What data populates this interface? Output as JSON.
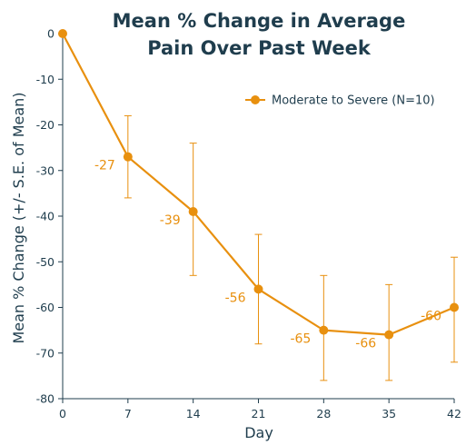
{
  "colors": {
    "series": "#e8900f",
    "text": "#1f3d4d",
    "axis": "#1f3d4d"
  },
  "chart_data": {
    "type": "line",
    "title_lines": [
      "Mean % Change in Average",
      "Pain Over Past Week"
    ],
    "xlabel": "Day",
    "ylabel": "Mean % Change (+/- S.E. of Mean)",
    "xlim": [
      0,
      42
    ],
    "ylim": [
      -80,
      0
    ],
    "x_ticks": [
      0,
      7,
      14,
      21,
      28,
      35,
      42
    ],
    "y_ticks": [
      0,
      -10,
      -20,
      -30,
      -40,
      -50,
      -60,
      -70,
      -80
    ],
    "grid": false,
    "legend": "top-right",
    "series": [
      {
        "name": "Moderate to Severe (N=10)",
        "points": [
          {
            "x": 0,
            "y": 0,
            "err_low": 0,
            "err_high": 0,
            "label": ""
          },
          {
            "x": 7,
            "y": -27,
            "err_low": -36,
            "err_high": -18,
            "label": "-27"
          },
          {
            "x": 14,
            "y": -39,
            "err_low": -53,
            "err_high": -24,
            "label": "-39"
          },
          {
            "x": 21,
            "y": -56,
            "err_low": -68,
            "err_high": -44,
            "label": "-56"
          },
          {
            "x": 28,
            "y": -65,
            "err_low": -76,
            "err_high": -53,
            "label": "-65"
          },
          {
            "x": 35,
            "y": -66,
            "err_low": -76,
            "err_high": -55,
            "label": "-66"
          },
          {
            "x": 42,
            "y": -60,
            "err_low": -72,
            "err_high": -49,
            "label": "-60"
          }
        ]
      }
    ]
  }
}
